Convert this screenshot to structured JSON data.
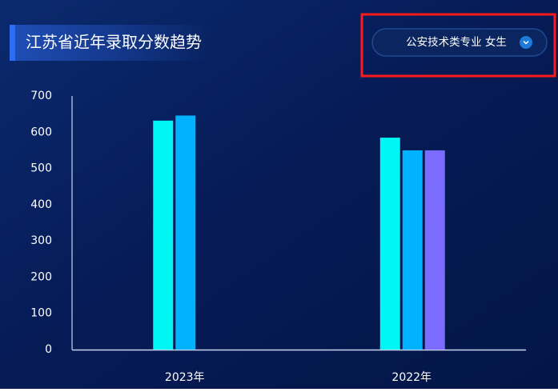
{
  "header": {
    "title": "江苏省近年录取分数趋势",
    "dropdown": "公安技术类专业 女生"
  },
  "chart_data": {
    "type": "bar",
    "categories": [
      "2023年",
      "2022年"
    ],
    "series": [
      {
        "color": "#00f5f5",
        "values": [
          632,
          585
        ]
      },
      {
        "color": "#00b2ff",
        "values": [
          646,
          550
        ]
      },
      {
        "color": "#7a6cff",
        "values": [
          null,
          550
        ]
      }
    ],
    "ylim": [
      0,
      700
    ],
    "yticks": [
      0,
      100,
      200,
      300,
      400,
      500,
      600,
      700
    ]
  }
}
